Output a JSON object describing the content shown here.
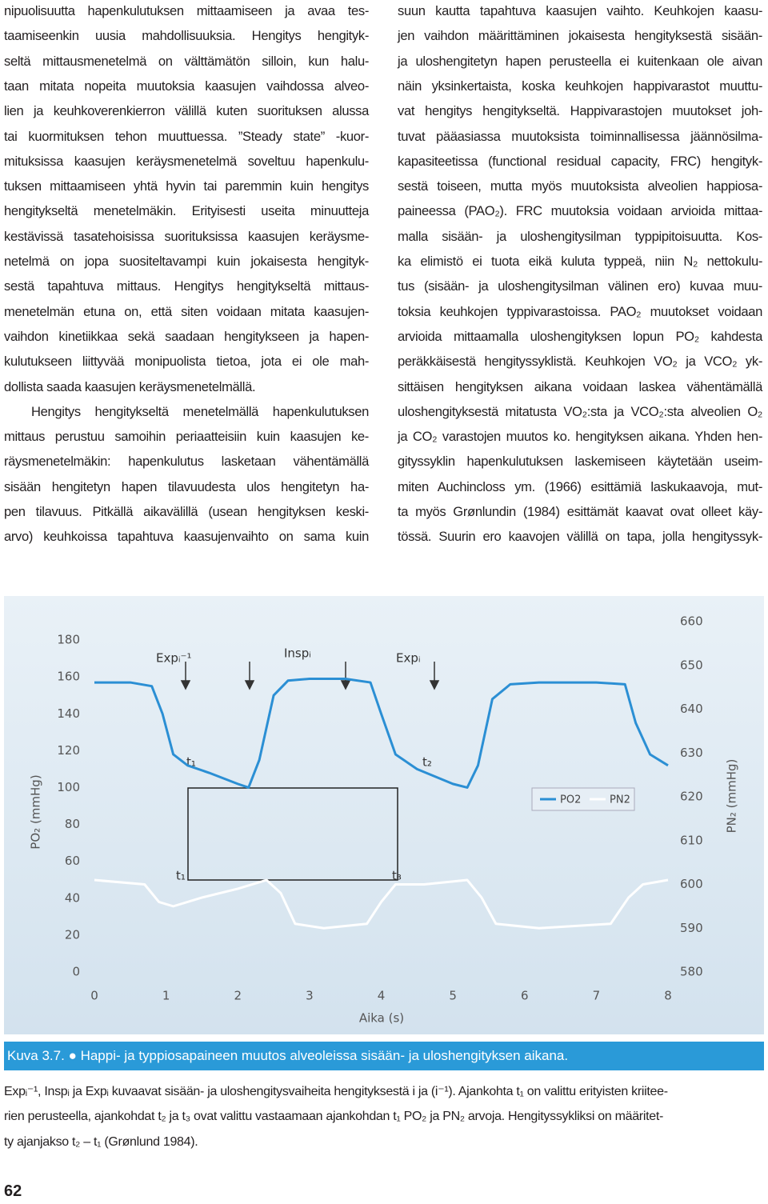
{
  "document": {
    "left_column": [
      {
        "lines": [
          "nipuolisuutta hapenkulutuksen mittaamiseen ja avaa tes-",
          "taamiseenkin uusia mahdollisuuksia. Hengitys hengityk-",
          "seltä mittausmenetelmä on välttämätön silloin, kun halu-",
          "taan mitata nopeita muutoksia kaasujen vaihdossa alveo-",
          "lien ja keuhkoverenkierron välillä kuten suorituksen alussa",
          "tai kuormituksen tehon muuttuessa. ”Steady state” -kuor-",
          "mituksissa kaasujen keräysmenetelmä soveltuu hapenkulu-",
          "tuksen mittaamiseen yhtä hyvin tai paremmin kuin hengitys",
          "hengitykseltä menetelmäkin. Erityisesti useita minuutteja",
          "kestävissä tasatehoisissa suorituksissa kaasujen keräysme-",
          "netelmä on jopa suositeltavampi kuin jokaisesta hengityk-",
          "sestä tapahtuva mittaus. Hengitys hengitykseltä mittaus-",
          "menetelmän etuna on, että siten voidaan mitata kaasujen-",
          "vaihdon kinetiikkaa sekä saadaan hengitykseen ja hapen-",
          "kulutukseen liittyvää monipuolista tietoa, jota ei ole mah-",
          "dollista saada kaasujen keräysmenetelmällä."
        ]
      },
      {
        "lines": [
          "Hengitys hengitykseltä menetelmällä hapenkulutuksen",
          "mittaus perustuu samoihin periaatteisiin kuin kaasujen ke-",
          "räysmenetelmäkin: hapenkulutus lasketaan vähentämällä",
          "sisään hengitetyn hapen tilavuudesta ulos hengitetyn ha-",
          "pen tilavuus. Pitkällä aikavälillä (usean hengityksen keski-",
          "arvo) keuhkoissa tapahtuva kaasujenvaihto on sama kuin"
        ]
      }
    ],
    "right_column": [
      {
        "lines": [
          "suun kautta tapahtuva kaasujen vaihto. Keuhkojen kaasu-",
          "jen vaihdon määrittäminen jokaisesta hengityksestä sisään-",
          "ja uloshengitetyn hapen perusteella ei kuitenkaan ole aivan",
          "näin yksinkertaista, koska keuhkojen happivarastot muuttu-",
          "vat hengitys hengitykseltä. Happivarastojen muutokset joh-",
          "tuvat pääasiassa muutoksista toiminnallisessa jäännösilma-",
          "kapasiteetissa (functional residual capacity, FRC) hengityk-",
          "sestä toiseen, mutta myös muutoksista alveolien happiosa-",
          "paineessa (PAO₂). FRC muutoksia voidaan arvioida mittaa-",
          "malla sisään- ja uloshengitysilman typpipitoisuutta. Kos-",
          "ka elimistö ei tuota eikä kuluta typpeä, niin N₂ nettokulu-",
          "tus (sisään- ja uloshengitysilman välinen ero) kuvaa muu-",
          "toksia keuhkojen typpivarastoissa. PAO₂ muutokset voidaan",
          "arvioida mittaamalla uloshengityksen lopun PO₂ kahdesta",
          "peräkkäisestä hengityssyklistä. Keuhkojen VO₂ ja VCO₂ yk-",
          "sittäisen hengityksen aikana voidaan laskea vähentämällä",
          "uloshengityksestä mitatusta VO₂:sta ja VCO₂:sta alveolien O₂",
          "ja CO₂ varastojen muutos ko. hengityksen aikana. Yhden hen-",
          "gityssyklin hapenkulutuksen laskemiseen käytetään useim-",
          "miten Auchincloss ym. (1966) esittämiä laskukaavoja, mut-",
          "ta myös Grønlundin (1984) esittämät kaavat ovat olleet käy-",
          "tössä. Suurin ero kaavojen välillä on tapa, jolla hengityssyk-"
        ]
      }
    ],
    "caption_label": "Kuva 3.7.",
    "caption_title": "Happi- ja typpiosapaineen muutos alveoleissa sisään- ja uloshengityksen aikana.",
    "caption_lines": [
      "Expᵢ⁻¹, Inspᵢ ja Expᵢ kuvaavat sisään- ja uloshengitysvaiheita hengityksestä i ja (i⁻¹). Ajankohta t₁ on valittu erityisten kriitee-",
      "rien perusteella, ajankohdat t₂ ja t₃ ovat valittu vastaamaan ajankohdan t₁ PO₂ ja PN₂ arvoja. Hengityssykliksi on määritet-",
      "ty ajanjakso t₂ – t₁ (Grønlund 1984)."
    ],
    "page_number": "62"
  },
  "chart_data": {
    "type": "line",
    "x_label": "Aika (s)",
    "y_label": "PO₂ (mmHg)",
    "y2_label": "PN₂ (mmHg)",
    "xlim": [
      0,
      8
    ],
    "xticks": [
      0,
      1,
      2,
      3,
      4,
      5,
      6,
      7,
      8
    ],
    "ylim": [
      0,
      190
    ],
    "yticks": [
      0,
      20,
      40,
      60,
      80,
      100,
      120,
      140,
      160,
      180
    ],
    "y2lim": [
      580,
      660
    ],
    "y2ticks": [
      580,
      590,
      600,
      610,
      620,
      630,
      640,
      650,
      660
    ],
    "annotations": [
      "Expᵢ⁻¹",
      "Inspᵢ",
      "Expᵢ",
      "t₁",
      "t₂",
      "t₁",
      "t₃"
    ],
    "series": [
      {
        "name": "PO2",
        "color": "#2b8fd4",
        "x": [
          0,
          0.5,
          0.8,
          0.95,
          1.1,
          1.3,
          1.6,
          2.0,
          2.15,
          2.3,
          2.5,
          2.7,
          3.0,
          3.5,
          3.85,
          4.0,
          4.2,
          4.5,
          5.0,
          5.2,
          5.35,
          5.55,
          5.8,
          6.2,
          7.0,
          7.4,
          7.55,
          7.75,
          8.0
        ],
        "values": [
          157,
          157,
          155,
          140,
          118,
          112,
          108,
          102,
          100,
          115,
          150,
          158,
          159,
          159,
          157,
          140,
          118,
          110,
          102,
          100,
          112,
          148,
          156,
          157,
          157,
          156,
          135,
          118,
          112
        ]
      },
      {
        "name": "PN2",
        "color": "#ffffff",
        "axis": "y2",
        "x": [
          0,
          0.7,
          0.9,
          1.1,
          1.5,
          2.0,
          2.4,
          2.6,
          2.8,
          3.2,
          3.8,
          4.0,
          4.2,
          4.6,
          5.2,
          5.4,
          5.6,
          6.2,
          7.2,
          7.45,
          7.65,
          8.0
        ],
        "values": [
          601,
          600,
          596,
          595,
          597,
          599,
          601,
          598,
          591,
          590,
          591,
          596,
          600,
          600,
          601,
          597,
          591,
          590,
          591,
          597,
          600,
          601
        ]
      }
    ]
  }
}
